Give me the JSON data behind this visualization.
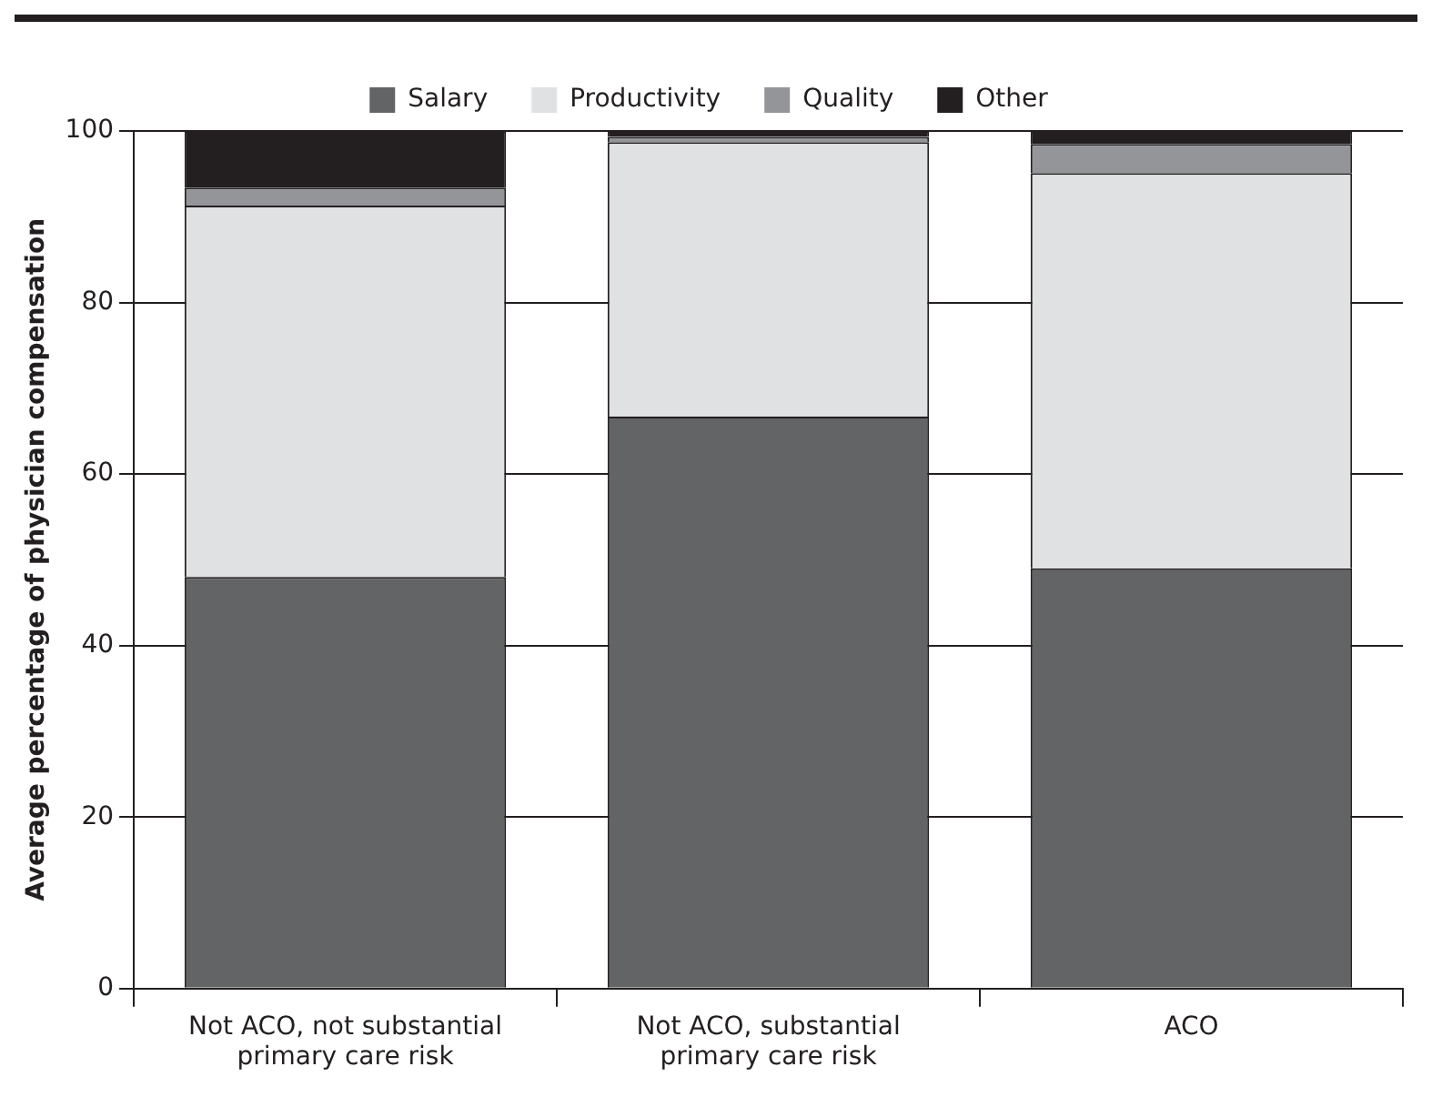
{
  "chart_data": {
    "type": "bar",
    "stacked": true,
    "ylabel": "Average percentage of physician compensation",
    "categories": [
      "Not ACO, not substantial primary care risk",
      "Not ACO, substantial primary care risk",
      "ACO"
    ],
    "series": [
      {
        "name": "Salary",
        "color": "#636466",
        "values": [
          48.0,
          66.7,
          49.0
        ]
      },
      {
        "name": "Productivity",
        "color": "#e0e1e3",
        "values": [
          43.3,
          32.0,
          46.1
        ]
      },
      {
        "name": "Quality",
        "color": "#939598",
        "values": [
          2.1,
          0.6,
          3.4
        ]
      },
      {
        "name": "Other",
        "color": "#231f20",
        "values": [
          6.6,
          0.7,
          1.5
        ]
      }
    ],
    "ylim": [
      0,
      100
    ],
    "yticks": [
      0,
      20,
      40,
      60,
      80,
      100
    ],
    "grid": "y",
    "legend": "top"
  }
}
